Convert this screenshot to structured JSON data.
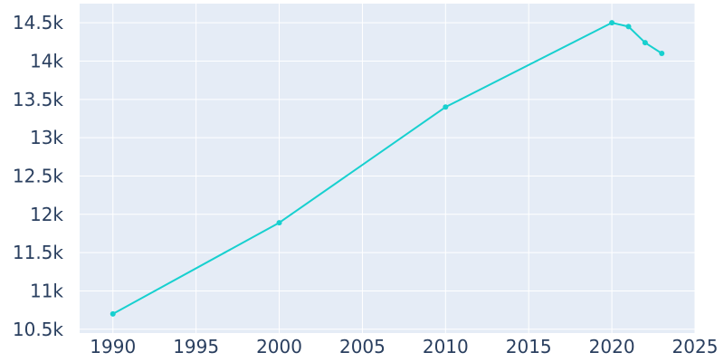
{
  "chart_data": {
    "type": "line",
    "x": [
      1990,
      2000,
      2010,
      2020,
      2021,
      2022,
      2023
    ],
    "series": [
      {
        "values": [
          10700,
          11890,
          13400,
          14500,
          14450,
          14240,
          14100
        ],
        "color": "#17d0cf"
      }
    ],
    "xlim": [
      1988,
      2025
    ],
    "ylim": [
      10450,
      14750
    ],
    "x_ticks": [
      1990,
      1995,
      2000,
      2005,
      2010,
      2015,
      2020,
      2025
    ],
    "x_tick_labels": [
      "1990",
      "1995",
      "2000",
      "2005",
      "2010",
      "2015",
      "2020",
      "2025"
    ],
    "y_ticks": [
      10500,
      11000,
      11500,
      12000,
      12500,
      13000,
      13500,
      14000,
      14500
    ],
    "y_tick_labels": [
      "10.5k",
      "11k",
      "11.5k",
      "12k",
      "12.5k",
      "13k",
      "13.5k",
      "14k",
      "14.5k"
    ],
    "grid": true,
    "plot_background": "#e5ecf6",
    "grid_color": "#ffffff",
    "text_color": "#2a3f5f"
  }
}
